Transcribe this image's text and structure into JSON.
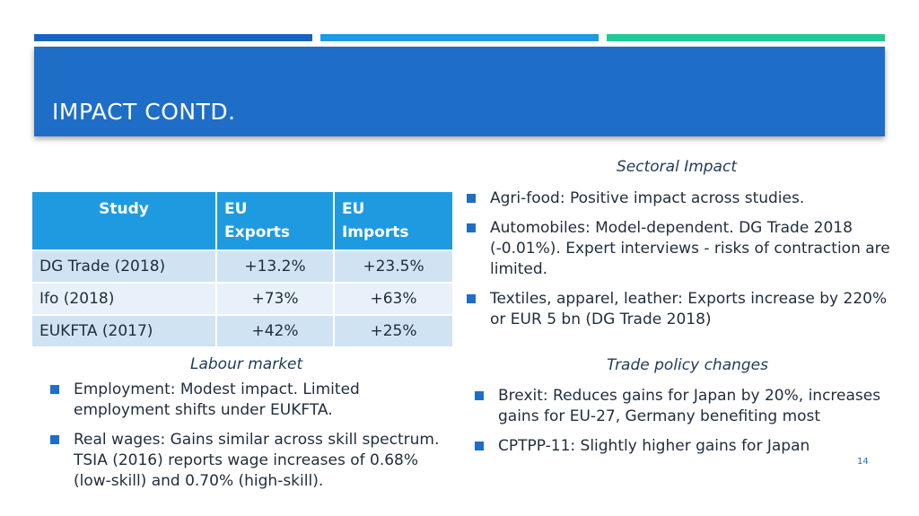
{
  "slide": {
    "title": "IMPACT CONTD.",
    "page_number": "14"
  },
  "table": {
    "headers": [
      "Study",
      "EU Exports",
      "EU Imports"
    ],
    "header_lines": [
      [
        "Study"
      ],
      [
        "EU",
        "Exports"
      ],
      [
        "EU",
        "Imports"
      ]
    ],
    "rows": [
      [
        "DG Trade (2018)",
        "+13.2%",
        "+23.5%"
      ],
      [
        "Ifo (2018)",
        "+73%",
        "+63%"
      ],
      [
        "EUKFTA (2017)",
        "+42%",
        "+25%"
      ]
    ]
  },
  "sectoral": {
    "title": "Sectoral Impact",
    "items": [
      "Agri-food: Positive impact across studies.",
      "Automobiles: Model-dependent. DG Trade 2018 (-0.01%). Expert interviews - risks of contraction are limited.",
      "Textiles, apparel, leather: Exports increase by 220% or EUR 5 bn (DG Trade 2018)"
    ]
  },
  "labour": {
    "title": "Labour market",
    "items": [
      "Employment: Modest impact. Limited employment shifts under EUKFTA.",
      "Real wages: Gains similar across skill spectrum. TSIA (2016) reports wage increases of 0.68% (low-skill) and 0.70% (high-skill)."
    ]
  },
  "trade_policy": {
    "title": "Trade policy changes",
    "items": [
      "Brexit: Reduces gains for Japan by 20%, increases gains for EU-27, Germany benefiting most",
      "CPTPP-11: Slightly higher gains for Japan"
    ]
  },
  "colors": {
    "header_bg": "#1e6ec8",
    "accent_blue": "#1e9be0",
    "accent_green": "#20c997",
    "table_row_dark": "#cfe3f3",
    "table_row_light": "#e8f1f9"
  }
}
